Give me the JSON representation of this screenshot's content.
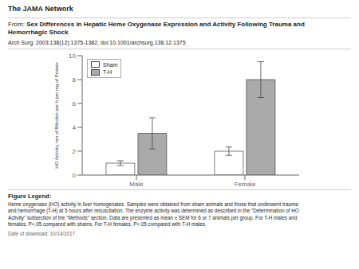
{
  "chart_data": {
    "type": "bar",
    "title": "Sex Differences in Hepatic Heme Oxygenase Expression and Activity Following Trauma and\nHemorrhagic Shock",
    "annotations": [
      "The JAMA Network",
      "From:",
      "Arch Surg. 2003;138(12):1375-1382. doi:10.1001/archsurg.138.12.1375",
      "Figure Legend:",
      "Heme oxygenase (HO) activity in liver homogenates. Samples were obtained from sham animals and those that underwent trauma\nand hemorrhage (T-H) at 5 hours after resuscitation. The enzyme activity was determined as described in the \"Determination of HO\nActivity\" subsection of the \"Methods\" section. Data are presented as mean ± SEM for 6 or 7 animals per group. For T-H males and\nfemales, P<.05 compared with shams. For T-H females, P<.05 compared with T-H males.",
      "Date of download: 10/14/2017"
    ],
    "categories": [
      "Male",
      "Female"
    ],
    "series": [
      {
        "name": "Sham",
        "color": "#ffffff",
        "values": [
          1.0,
          2.0
        ],
        "errors": [
          0.2,
          0.35
        ]
      },
      {
        "name": "T-H",
        "color": "#aaaaaa",
        "values": [
          3.5,
          8.0
        ],
        "errors": [
          1.3,
          1.5
        ]
      }
    ],
    "y_label": "HO Activity, nm of Bilirubin per h per mg of Protein",
    "ylim": [
      0,
      10
    ],
    "yticks": [
      0,
      2,
      4,
      6,
      8,
      10
    ],
    "grid": false,
    "legend": "upper left"
  }
}
